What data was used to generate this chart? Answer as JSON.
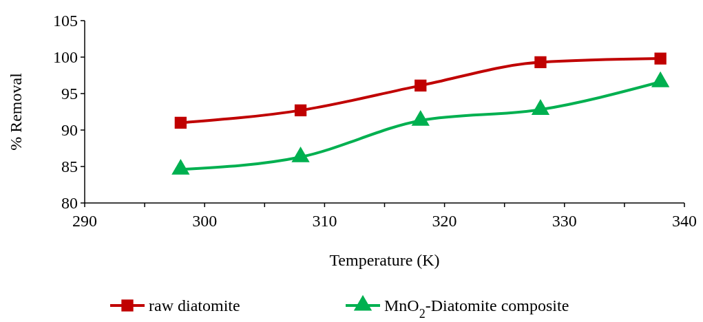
{
  "chart_data": {
    "type": "line",
    "xlabel": "Temperature (K)",
    "ylabel": "% Removal",
    "x": [
      298,
      308,
      318,
      328,
      338
    ],
    "series": [
      {
        "name": "raw diatomite",
        "color": "#c00000",
        "marker": "square",
        "values": [
          91.0,
          92.7,
          96.1,
          99.3,
          99.8
        ]
      },
      {
        "name": "MnO$_{2}$-Diatomite composite",
        "color": "#00b050",
        "marker": "triangle",
        "values": [
          84.6,
          86.3,
          91.3,
          92.8,
          96.6
        ]
      }
    ],
    "xlim": [
      290,
      340
    ],
    "xticks": [
      290,
      {
        "value": 295,
        "label": null
      },
      300,
      {
        "value": 305,
        "label": null
      },
      310,
      {
        "value": 315,
        "label": null
      },
      320,
      {
        "value": 325,
        "label": null
      },
      330,
      {
        "value": 335,
        "label": null
      },
      340
    ],
    "ylim": [
      80,
      105
    ],
    "yticks": [
      80,
      85,
      90,
      95,
      100,
      105
    ],
    "grid": false,
    "legend": "bottom"
  }
}
